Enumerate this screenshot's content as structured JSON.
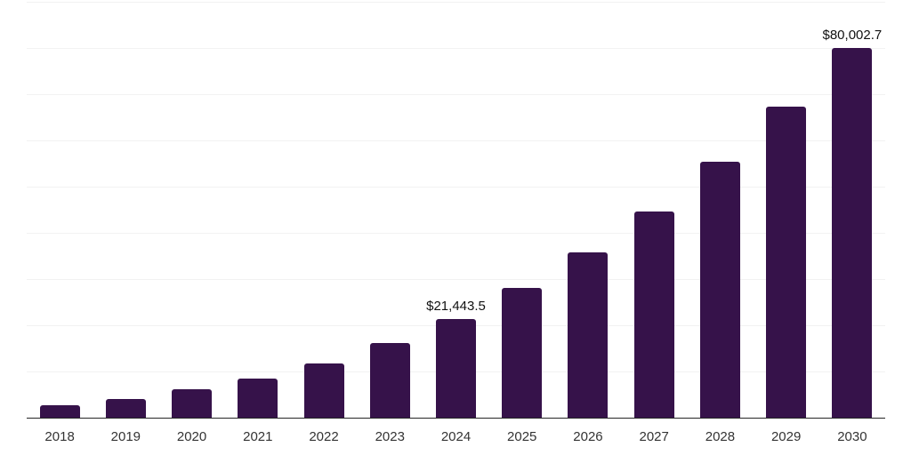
{
  "chart_data": {
    "type": "bar",
    "title": "",
    "xlabel": "",
    "ylabel": "",
    "categories": [
      "2018",
      "2019",
      "2020",
      "2021",
      "2022",
      "2023",
      "2024",
      "2025",
      "2026",
      "2027",
      "2028",
      "2029",
      "2030"
    ],
    "values": [
      2600,
      3950,
      6150,
      8500,
      11700,
      16250,
      21443.5,
      28000,
      35700,
      44700,
      55300,
      67300,
      80002.7
    ],
    "data_labels": {
      "2024": "$21,443.5",
      "2030": "$80,002.7"
    },
    "ylim": [
      0,
      90000
    ],
    "gridline_interval": 10000,
    "grid": true,
    "legend_position": "none",
    "y_tick_labels_visible": false,
    "colors": {
      "bar": "#36124a",
      "gridline": "#f2f2f2",
      "axis_line": "#262626",
      "tick_label": "#333333",
      "data_label": "#111111",
      "background": "#ffffff"
    }
  }
}
